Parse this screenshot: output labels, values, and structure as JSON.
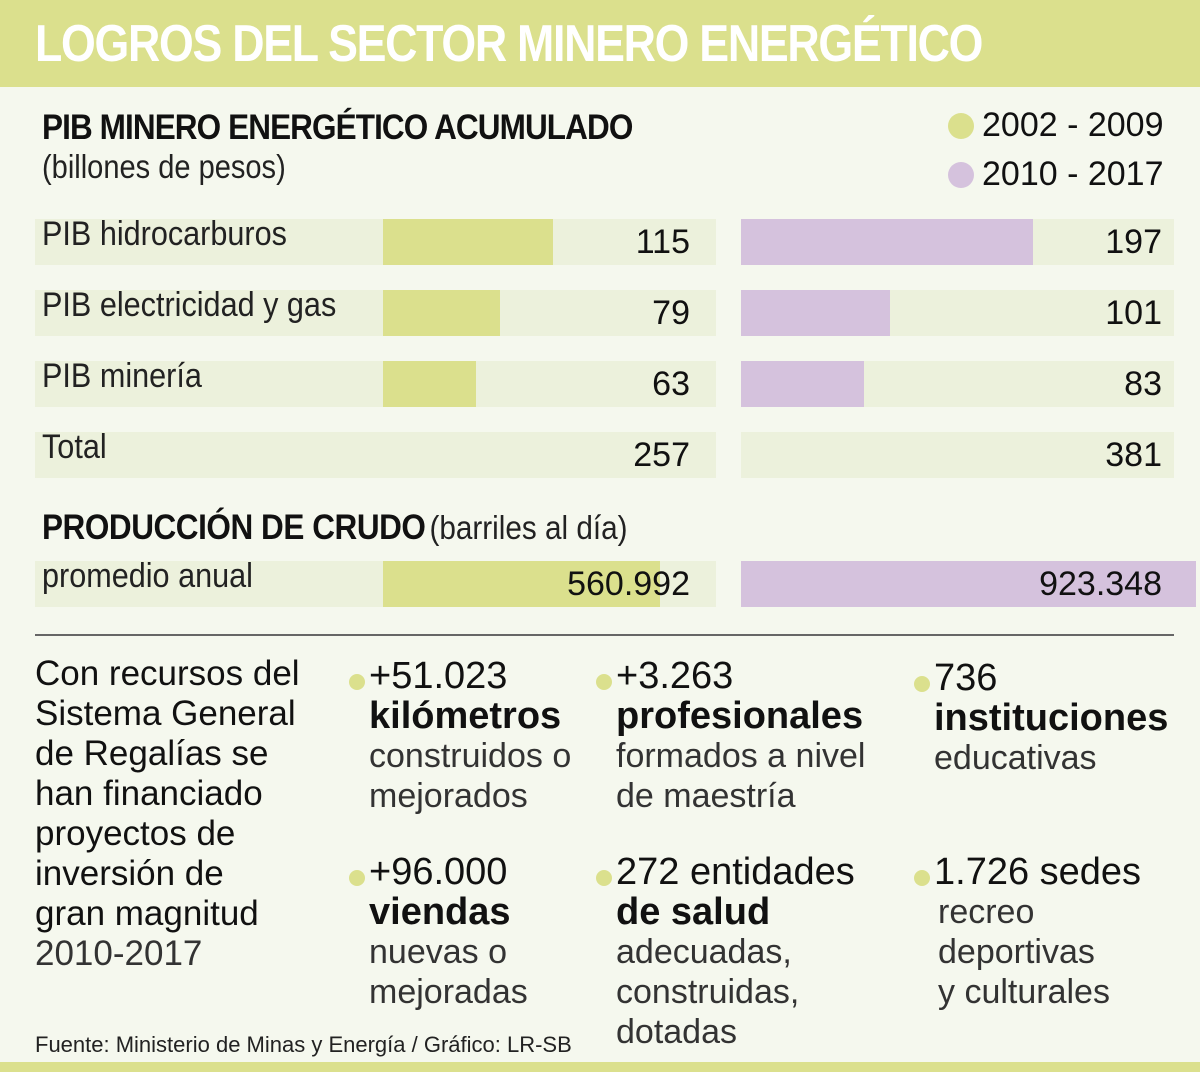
{
  "header": {
    "title": "LOGROS DEL SECTOR MINERO ENERGÉTICO"
  },
  "colors": {
    "period1": "#dbe08d",
    "period2": "#d5c2dd",
    "track": "#ecf1dc",
    "background": "#f5f8ee"
  },
  "chart_data": {
    "type": "bar",
    "title": "PIB MINERO ENERGÉTICO ACUMULADO",
    "subtitle": "(billones de pesos)",
    "legend": [
      {
        "label": "2002 - 2009",
        "color": "#dbe08d"
      },
      {
        "label": "2010 - 2017",
        "color": "#d5c2dd"
      }
    ],
    "legend_position": "top-right",
    "categories": [
      "PIB hidrocarburos",
      "PIB electricidad y gas",
      "PIB minería",
      "Total"
    ],
    "series": [
      {
        "name": "2002 - 2009",
        "values": [
          115,
          79,
          63,
          257
        ],
        "labels": [
          "115",
          "79",
          "63",
          "257"
        ]
      },
      {
        "name": "2010 - 2017",
        "values": [
          197,
          101,
          83,
          381
        ],
        "labels": [
          "197",
          "101",
          "83",
          "381"
        ]
      }
    ],
    "total_row_has_bar": false,
    "production": {
      "title": "PRODUCCIÓN DE CRUDO",
      "unit": "(barriles al día)",
      "category": "promedio anual",
      "values": [
        560992,
        923348
      ],
      "labels": [
        "560.992",
        "923.348"
      ]
    }
  },
  "summary": {
    "intro_lines": [
      "Con recursos del",
      "Sistema General",
      "de Regalías se",
      "han financiado",
      "proyectos de",
      "inversión de",
      "gran magnitud"
    ],
    "years": "2010-2017",
    "stats": [
      {
        "number": "+51.023",
        "bold": "kilómetros",
        "desc": [
          "construidos o",
          "mejorados"
        ]
      },
      {
        "number": "+3.263",
        "bold": "profesionales",
        "desc": [
          "formados a nivel",
          "de maestría"
        ]
      },
      {
        "number": "736",
        "bold": "instituciones",
        "desc": [
          "educativas"
        ]
      },
      {
        "number": "+96.000",
        "bold": "viendas",
        "desc": [
          "nuevas o",
          "mejoradas"
        ]
      },
      {
        "number": "272 entidades",
        "bold": "de salud",
        "desc": [
          "adecuadas,",
          "construidas,",
          "dotadas"
        ]
      },
      {
        "number": "1.726 sedes",
        "bold": "",
        "desc": [
          "recreo",
          "deportivas",
          "y culturales"
        ]
      }
    ]
  },
  "source": "Fuente: Ministerio de Minas y Energía / Gráfico: LR-SB"
}
